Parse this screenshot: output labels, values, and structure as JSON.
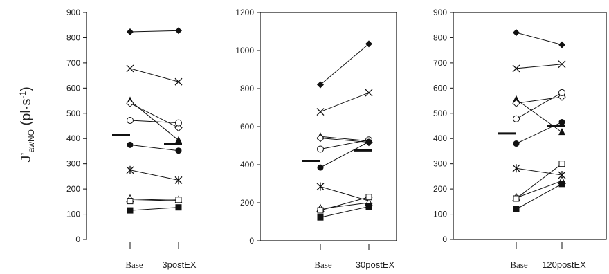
{
  "ylabel": {
    "main": "J’",
    "sub": "awNO",
    "unit_open": " (pl·s",
    "unit_exp": "-1",
    "unit_close": ")"
  },
  "chart_data": [
    {
      "type": "scatter",
      "categories": [
        "Base",
        "3postEX"
      ],
      "ylim": [
        0,
        900
      ],
      "yticks": [
        0,
        100,
        200,
        300,
        400,
        500,
        600,
        700,
        800,
        900
      ],
      "ylabel": "J’awNO (pl·s-1)",
      "grid": false,
      "frame": "left-only",
      "mean": [
        415,
        378
      ],
      "series": [
        {
          "marker": "diamond-filled",
          "values": [
            823,
            828
          ]
        },
        {
          "marker": "cross",
          "values": [
            678,
            625
          ]
        },
        {
          "marker": "triangle-filled",
          "values": [
            550,
            393
          ]
        },
        {
          "marker": "diamond-open",
          "values": [
            540,
            443
          ]
        },
        {
          "marker": "circle-open",
          "values": [
            472,
            462
          ]
        },
        {
          "marker": "circle-filled",
          "values": [
            375,
            352
          ]
        },
        {
          "marker": "star",
          "values": [
            275,
            235
          ]
        },
        {
          "marker": "triangle-open",
          "values": [
            160,
            155
          ]
        },
        {
          "marker": "square-open",
          "values": [
            152,
            157
          ]
        },
        {
          "marker": "square-filled",
          "values": [
            115,
            127
          ]
        }
      ]
    },
    {
      "type": "scatter",
      "categories": [
        "Base",
        "30postEX"
      ],
      "ylim": [
        0,
        1200
      ],
      "yticks": [
        0,
        200,
        400,
        600,
        800,
        1000,
        1200
      ],
      "grid": false,
      "frame": "box",
      "mean": [
        420,
        475
      ],
      "series": [
        {
          "marker": "diamond-filled",
          "values": [
            820,
            1035
          ]
        },
        {
          "marker": "cross",
          "values": [
            678,
            778
          ]
        },
        {
          "marker": "triangle-filled",
          "values": [
            548,
            525
          ]
        },
        {
          "marker": "diamond-open",
          "values": [
            540,
            518
          ]
        },
        {
          "marker": "circle-open",
          "values": [
            482,
            530
          ]
        },
        {
          "marker": "circle-filled",
          "values": [
            385,
            520
          ]
        },
        {
          "marker": "star",
          "values": [
            285,
            210
          ]
        },
        {
          "marker": "triangle-open",
          "values": [
            168,
            200
          ]
        },
        {
          "marker": "square-open",
          "values": [
            160,
            230
          ]
        },
        {
          "marker": "square-filled",
          "values": [
            123,
            180
          ]
        }
      ]
    },
    {
      "type": "scatter",
      "categories": [
        "Base",
        "120postEX"
      ],
      "ylim": [
        0,
        900
      ],
      "yticks": [
        0,
        100,
        200,
        300,
        400,
        500,
        600,
        700,
        800,
        900
      ],
      "grid": false,
      "frame": "box",
      "mean": [
        420,
        450
      ],
      "series": [
        {
          "marker": "diamond-filled",
          "values": [
            820,
            772
          ]
        },
        {
          "marker": "cross",
          "values": [
            678,
            695
          ]
        },
        {
          "marker": "triangle-filled",
          "values": [
            555,
            425
          ]
        },
        {
          "marker": "diamond-open",
          "values": [
            540,
            565
          ]
        },
        {
          "marker": "circle-open",
          "values": [
            478,
            582
          ]
        },
        {
          "marker": "circle-filled",
          "values": [
            380,
            465
          ]
        },
        {
          "marker": "star",
          "values": [
            282,
            255
          ]
        },
        {
          "marker": "triangle-open",
          "values": [
            165,
            232
          ]
        },
        {
          "marker": "square-open",
          "values": [
            162,
            300
          ]
        },
        {
          "marker": "square-filled",
          "values": [
            120,
            220
          ]
        }
      ]
    }
  ]
}
